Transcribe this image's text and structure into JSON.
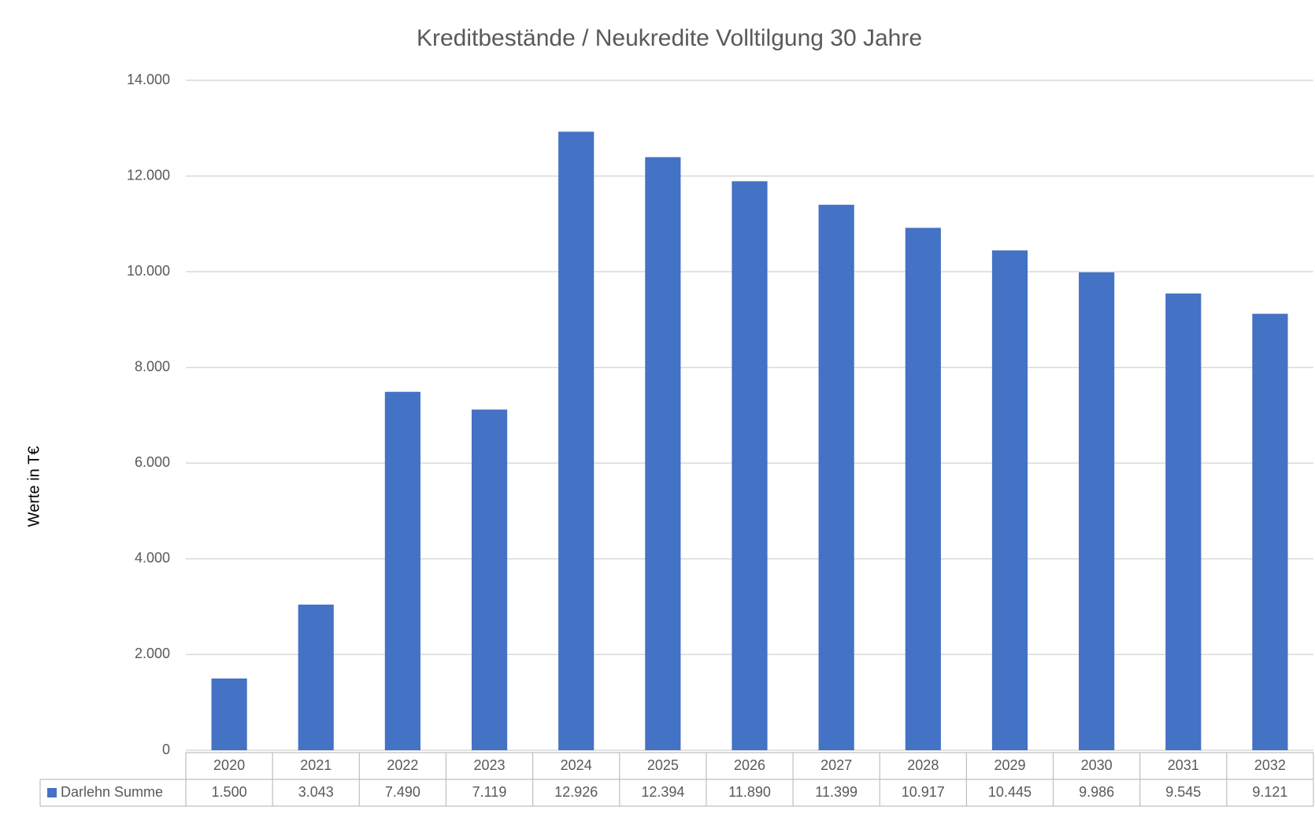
{
  "chart_data": {
    "type": "bar",
    "title": "Kreditbestände / Neukredite Volltilgung 30 Jahre",
    "y_label": "Werte in T€",
    "categories": [
      "2020",
      "2021",
      "2022",
      "2023",
      "2024",
      "2025",
      "2026",
      "2027",
      "2028",
      "2029",
      "2030",
      "2031",
      "2032"
    ],
    "series": [
      {
        "name": "Darlehn Summe",
        "color": "#4472c4",
        "values": [
          1500,
          3043,
          7490,
          7119,
          12926,
          12394,
          11890,
          11399,
          10917,
          10445,
          9986,
          9545,
          9121
        ],
        "value_labels": [
          "1.500",
          "3.043",
          "7.490",
          "7.119",
          "12.926",
          "12.394",
          "11.890",
          "11.399",
          "10.917",
          "10.445",
          "9.986",
          "9.545",
          "9.121"
        ]
      }
    ],
    "ylim": [
      0,
      14000
    ],
    "yticks": [
      0,
      {
        "value": 2000,
        "label": "2.000"
      },
      {
        "value": 4000,
        "label": "4.000"
      },
      {
        "value": 6000,
        "label": "6.000"
      },
      {
        "value": 8000,
        "label": "8.000"
      },
      {
        "value": 10000,
        "label": "10.000"
      },
      {
        "value": 12000,
        "label": "12.000"
      },
      {
        "value": 14000,
        "label": "14.000"
      }
    ],
    "grid": true,
    "data_table": true
  }
}
